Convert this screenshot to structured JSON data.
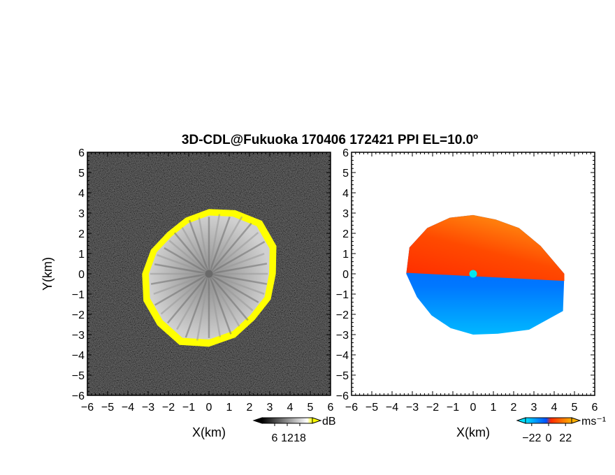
{
  "figure": {
    "title": "3D-CDL@Fukuoka 170406 172421 PPI EL=10.0º"
  },
  "chart_data": [
    {
      "type": "heatmap",
      "panel": "left",
      "quantity": "SNR",
      "xlabel": "X(km)",
      "ylabel": "Y(km)",
      "xlim": [
        -6,
        6
      ],
      "ylim": [
        -6,
        6
      ],
      "xticks": [
        "−6",
        "−5",
        "−4",
        "−3",
        "−2",
        "−1",
        "0",
        "1",
        "2",
        "3",
        "4",
        "5",
        "6"
      ],
      "yticks": [
        "−6",
        "−5",
        "−4",
        "−3",
        "−2",
        "−1",
        "0",
        "1",
        "2",
        "3",
        "4",
        "5",
        "6"
      ],
      "echo_radius_km": [
        3.3,
        3.6,
        3.7,
        3.4,
        3.2,
        3.0,
        2.9,
        3.1,
        3.3,
        3.5,
        3.6,
        3.8,
        3.6,
        3.4,
        3.2,
        3.3
      ],
      "background_color": "#1e1e1e",
      "edge_color": "#ffff00",
      "colorbar": {
        "unit": "dB",
        "tick_labels": [
          "6",
          "12",
          "18"
        ],
        "tick_values": [
          6,
          12,
          18
        ],
        "range": [
          0,
          24
        ],
        "colors": [
          "#000000",
          "#ffffff",
          "#ffff00"
        ]
      }
    },
    {
      "type": "heatmap",
      "panel": "right",
      "quantity": "Doppler velocity",
      "xlabel": "X(km)",
      "ylabel": "",
      "xlim": [
        -6,
        6
      ],
      "ylim": [
        -6,
        6
      ],
      "xticks": [
        "−6",
        "−5",
        "−4",
        "−3",
        "−2",
        "−1",
        "0",
        "1",
        "2",
        "3",
        "4",
        "5",
        "6"
      ],
      "yticks": [
        "−6",
        "−5",
        "−4",
        "−3",
        "−2",
        "−1",
        "0",
        "1",
        "2",
        "3",
        "4",
        "5",
        "6"
      ],
      "echo_radius_km": [
        4.5,
        3.6,
        3.2,
        2.9,
        2.9,
        3.0,
        3.2,
        3.4,
        3.3,
        3.0,
        2.9,
        2.9,
        3.0,
        3.2,
        3.9,
        4.8
      ],
      "colorbar": {
        "unit": "ms⁻¹",
        "tick_labels": [
          "−22",
          "0",
          "22"
        ],
        "tick_values": [
          -22,
          0,
          22
        ],
        "range": [
          -30,
          30
        ],
        "colors": [
          "#00e0ff",
          "#0050ff",
          "#ff2a00",
          "#ffb000"
        ]
      }
    }
  ]
}
